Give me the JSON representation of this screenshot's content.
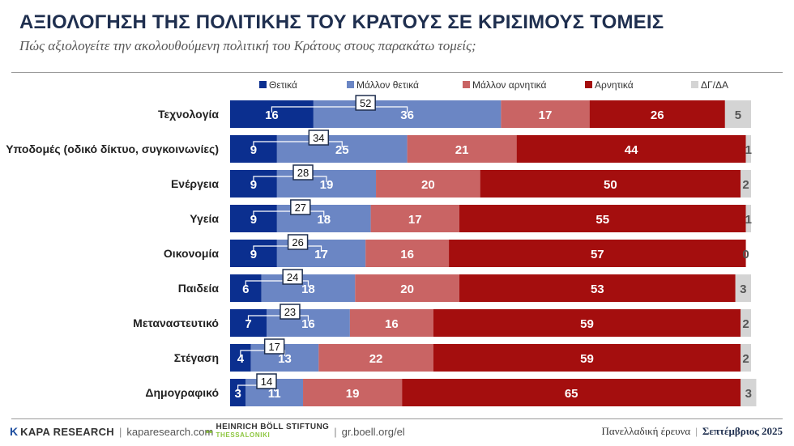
{
  "title": "ΑΞΙΟΛΟΓΗΣΗ ΤΗΣ ΠΟΛΙΤΙΚΗΣ ΤΟΥ ΚΡΑΤΟΥΣ ΣΕ ΚΡΙΣΙΜΟΥΣ ΤΟΜΕΙΣ",
  "subtitle": "Πώς αξιολογείτε την ακολουθούμενη πολιτική του Κράτους στους παρακάτω τομείς;",
  "footer": {
    "kapa_mark": "K",
    "kapa_name": "KAPA RESEARCH",
    "kapa_site": "kaparesearch.com",
    "boell_mark": "▪▪",
    "boell_name": "HEINRICH BÖLL STIFTUNG",
    "boell_city": "THESSALONIKI",
    "boell_site": "gr.boell.org/el",
    "survey_label": "Πανελλαδική έρευνα",
    "survey_date": "Σεπτέμβριος 2025"
  },
  "colors": {
    "positive": "#0b2f8f",
    "rather_positive": "#6b86c4",
    "rather_negative": "#c96464",
    "negative": "#a40e0e",
    "dk_na": "#d4d4d4"
  },
  "chart_data": {
    "type": "bar",
    "orientation": "horizontal",
    "stacked": true,
    "legend_position": "top",
    "categories": [
      "Τεχνολογία",
      "Υποδομές (οδικό δίκτυο, συγκοινωνίες)",
      "Ενέργεια",
      "Υγεία",
      "Οικονομία",
      "Παιδεία",
      "Μεταναστευτικό",
      "Στέγαση",
      "Δημογραφικό"
    ],
    "series": [
      {
        "name": "Θετικά",
        "color": "#0b2f8f",
        "values": [
          16,
          9,
          9,
          9,
          9,
          6,
          7,
          4,
          3
        ]
      },
      {
        "name": "Μάλλον θετικά",
        "color": "#6b86c4",
        "values": [
          36,
          25,
          19,
          18,
          17,
          18,
          16,
          13,
          11
        ]
      },
      {
        "name": "Μάλλον αρνητικά",
        "color": "#c96464",
        "values": [
          17,
          21,
          20,
          17,
          16,
          20,
          16,
          22,
          19
        ]
      },
      {
        "name": "Αρνητικά",
        "color": "#a40e0e",
        "values": [
          26,
          44,
          50,
          55,
          57,
          53,
          59,
          59,
          65
        ]
      },
      {
        "name": "ΔΓ/ΔΑ",
        "color": "#d4d4d4",
        "values": [
          5,
          1,
          2,
          1,
          0,
          3,
          2,
          2,
          3
        ]
      }
    ],
    "positive_totals": [
      52,
      34,
      28,
      27,
      26,
      24,
      23,
      17,
      14
    ],
    "xlim": [
      0,
      100
    ]
  }
}
